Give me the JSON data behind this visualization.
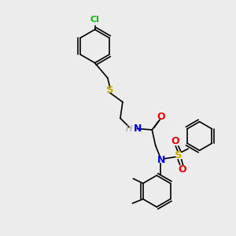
{
  "bg_color": "#ececec",
  "bond_color": "#000000",
  "atom_colors": {
    "Cl": "#00bb00",
    "S": "#ccaa00",
    "N": "#0000ee",
    "O": "#ee0000",
    "H": "#999999",
    "C": "#000000"
  }
}
